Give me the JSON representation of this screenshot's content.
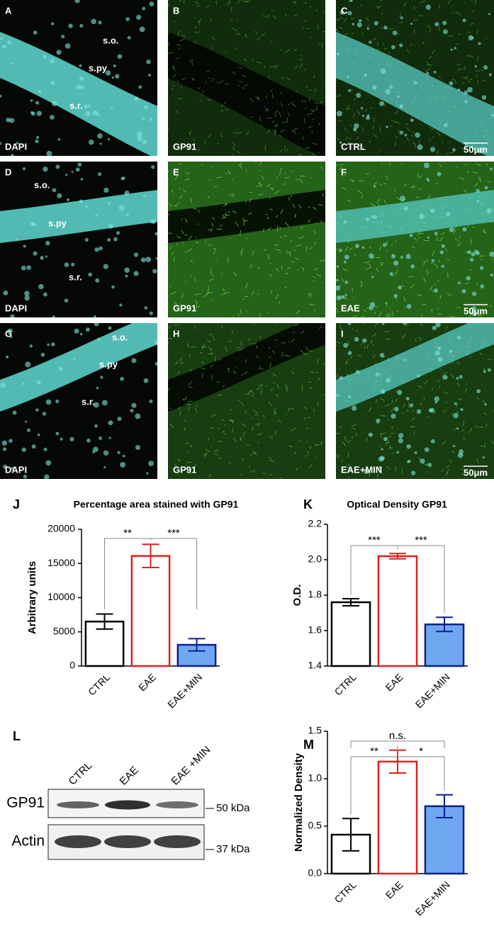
{
  "micrographs": {
    "panels": [
      {
        "letter": "A",
        "label": "DAPI",
        "regions": [
          "s.o.",
          "s.py",
          "s.r."
        ]
      },
      {
        "letter": "B",
        "label": "GP91"
      },
      {
        "letter": "C",
        "label": "CTRL",
        "scale": "50μm"
      },
      {
        "letter": "D",
        "label": "DAPI",
        "regions": [
          "s.o.",
          "s.py",
          "s.r."
        ]
      },
      {
        "letter": "E",
        "label": "GP91"
      },
      {
        "letter": "F",
        "label": "EAE",
        "scale": "50μm"
      },
      {
        "letter": "G",
        "label": "DAPI",
        "regions": [
          "s.o.",
          "s.py",
          "s.r."
        ]
      },
      {
        "letter": "H",
        "label": "GP91"
      },
      {
        "letter": "I",
        "label": "EAE+MIN",
        "scale": "50μm"
      }
    ]
  },
  "blot": {
    "panel": "L",
    "lanes": [
      "CTRL",
      "EAE",
      "EAE +MIN"
    ],
    "rows": [
      "GP91",
      "Actin"
    ],
    "markers": [
      "50 kDa",
      "37 kDa"
    ]
  },
  "chart_data": [
    {
      "type": "bar",
      "panel": "J",
      "title": "Percentage area stained with GP91",
      "y_label": "Arbitrary units",
      "categories": [
        "CTRL",
        "EAE",
        "EAE+MIN"
      ],
      "values": [
        6500,
        16100,
        3100
      ],
      "errors": [
        1100,
        1700,
        900
      ],
      "edge_colors": [
        "#000000",
        "#e0201b",
        "#0c1f8c"
      ],
      "fill_colors": [
        "#ffffff",
        "#ffffff",
        "#6fa8f0"
      ],
      "ylim": [
        0,
        20000
      ],
      "yticks": [
        0,
        5000,
        10000,
        15000,
        20000
      ],
      "annotations": [
        "**",
        "***"
      ]
    },
    {
      "type": "bar",
      "panel": "K",
      "title": "Optical Density GP91",
      "y_label": "O.D.",
      "categories": [
        "CTRL",
        "EAE",
        "EAE+MIN"
      ],
      "values": [
        1.76,
        2.02,
        1.635
      ],
      "errors": [
        0.02,
        0.015,
        0.04
      ],
      "edge_colors": [
        "#000000",
        "#e0201b",
        "#0c1f8c"
      ],
      "fill_colors": [
        "#ffffff",
        "#ffffff",
        "#6fa8f0"
      ],
      "ylim": [
        1.4,
        2.2
      ],
      "yticks": [
        1.4,
        1.6,
        1.8,
        {
          "value": 2,
          "label": "2.0"
        },
        2.2
      ],
      "annotations": [
        "***",
        "***"
      ]
    },
    {
      "type": "bar",
      "panel": "M",
      "y_label": "Normalized Density",
      "categories": [
        "CTRL",
        "EAE",
        "EAE+MIN"
      ],
      "values": [
        0.41,
        1.18,
        0.71
      ],
      "errors": [
        0.17,
        0.12,
        0.12
      ],
      "edge_colors": [
        "#000000",
        "#e0201b",
        "#0c1f8c"
      ],
      "fill_colors": [
        "#ffffff",
        "#ffffff",
        "#6fa8f0"
      ],
      "ylim": [
        0,
        1.5
      ],
      "yticks": [
        {
          "value": 0,
          "label": "0.0"
        },
        0.5,
        {
          "value": 1,
          "label": "1.0"
        },
        1.5
      ],
      "annotations": [
        "n.s.",
        "**",
        "*"
      ]
    }
  ]
}
